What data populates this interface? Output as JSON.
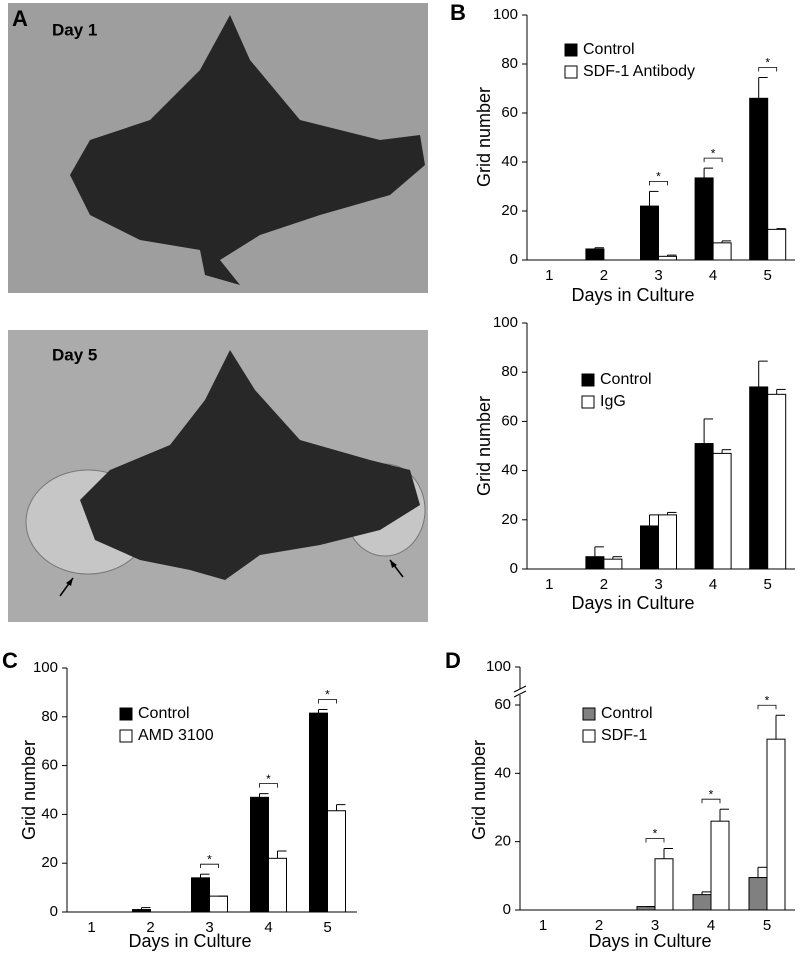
{
  "figure": {
    "panel_label": "A",
    "photo_labels": [
      "Day 1",
      "Day 5"
    ]
  },
  "chart_data": [
    {
      "type": "bar",
      "panel_label": "B",
      "x_label": "Days in Culture",
      "y_label": "Grid number",
      "categories": [
        "1",
        "2",
        "3",
        "4",
        "5"
      ],
      "series": [
        {
          "name": "Control",
          "color": "#000000",
          "values": [
            0,
            4.5,
            22,
            33.5,
            66
          ],
          "errors": [
            0,
            0.5,
            6,
            4,
            8.5
          ]
        },
        {
          "name": "SDF-1 Antibody",
          "color": "#ffffff",
          "values": [
            0,
            0,
            1.5,
            7,
            12.5
          ],
          "errors": [
            0,
            0,
            0.5,
            0.8,
            0.3
          ]
        }
      ],
      "ylim": [
        0,
        100
      ],
      "yticks": [
        0,
        20,
        40,
        60,
        80,
        100
      ],
      "legend": "upper left",
      "annotations": [
        {
          "text": "*",
          "category": "3"
        },
        {
          "text": "*",
          "category": "4"
        },
        {
          "text": "*",
          "category": "5"
        }
      ]
    },
    {
      "type": "bar",
      "x_label": "Days in Culture",
      "y_label": "Grid number",
      "categories": [
        "1",
        "2",
        "3",
        "4",
        "5"
      ],
      "series": [
        {
          "name": "Control",
          "color": "#000000",
          "values": [
            0,
            5,
            17.5,
            51,
            74
          ],
          "errors": [
            0,
            4,
            4.5,
            10,
            10.5
          ]
        },
        {
          "name": "IgG",
          "color": "#ffffff",
          "values": [
            0,
            4,
            22,
            47,
            71
          ],
          "errors": [
            0,
            1,
            1,
            1.5,
            2
          ]
        }
      ],
      "ylim": [
        0,
        100
      ],
      "yticks": [
        0,
        20,
        40,
        60,
        80,
        100
      ],
      "legend": "upper left"
    },
    {
      "type": "bar",
      "panel_label": "C",
      "x_label": "Days in Culture",
      "y_label": "Grid number",
      "categories": [
        "1",
        "2",
        "3",
        "4",
        "5"
      ],
      "series": [
        {
          "name": "Control",
          "color": "#000000",
          "values": [
            0,
            1,
            14,
            47,
            81.5
          ],
          "errors": [
            0,
            0.8,
            1.5,
            1.5,
            1.5
          ]
        },
        {
          "name": "AMD 3100",
          "color": "#ffffff",
          "values": [
            0,
            0,
            6.5,
            22,
            41.5
          ],
          "errors": [
            0,
            0,
            0,
            3,
            2.5
          ]
        }
      ],
      "ylim": [
        0,
        100
      ],
      "yticks": [
        0,
        20,
        40,
        60,
        80,
        100
      ],
      "legend": "upper left",
      "annotations": [
        {
          "text": "*",
          "category": "3"
        },
        {
          "text": "*",
          "category": "4"
        },
        {
          "text": "*",
          "category": "5"
        }
      ]
    },
    {
      "type": "bar",
      "panel_label": "D",
      "x_label": "Days in Culture",
      "y_label": "Grid number",
      "categories": [
        "1",
        "2",
        "3",
        "4",
        "5"
      ],
      "series": [
        {
          "name": "Control",
          "color": "#808080",
          "values": [
            0,
            0,
            1,
            4.5,
            9.5
          ],
          "errors": [
            0,
            0,
            0,
            0.8,
            3
          ]
        },
        {
          "name": "SDF-1",
          "color": "#ffffff",
          "values": [
            0,
            0,
            15,
            26,
            50
          ],
          "errors": [
            0,
            0,
            3,
            3.5,
            7
          ]
        }
      ],
      "ylim": [
        0,
        100
      ],
      "yticks": [
        0,
        20,
        40,
        60,
        100
      ],
      "y_break": true,
      "legend": "upper left",
      "annotations": [
        {
          "text": "*",
          "category": "3"
        },
        {
          "text": "*",
          "category": "4"
        },
        {
          "text": "*",
          "category": "5"
        }
      ]
    }
  ]
}
